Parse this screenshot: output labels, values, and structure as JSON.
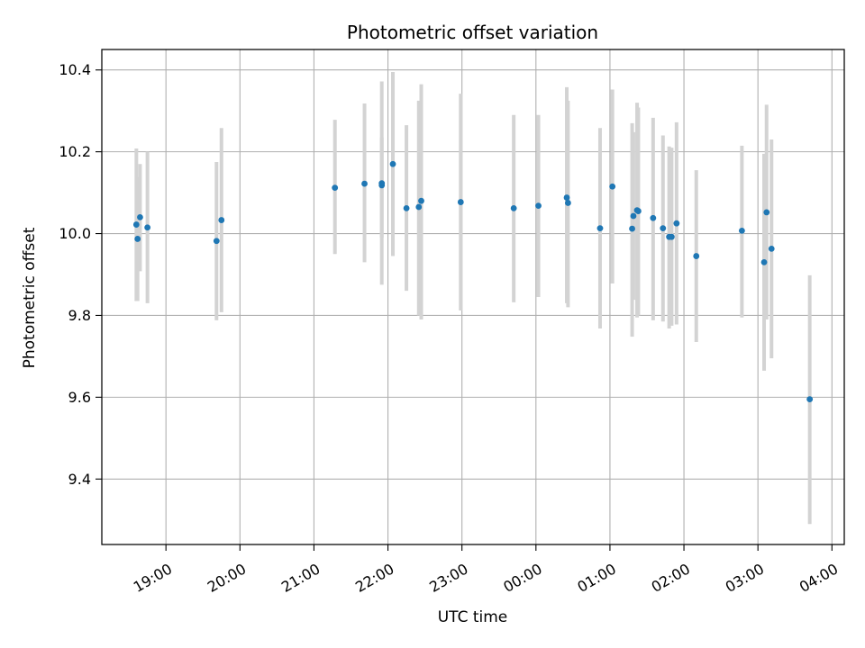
{
  "chart_data": {
    "type": "scatter",
    "title": "Photometric offset variation",
    "xlabel": "UTC time",
    "ylabel": "Photometric offset",
    "x_unit": "UTC time (hours, post-midnight values shown past 24)",
    "xlim": [
      "18:08",
      "04:10"
    ],
    "ylim": [
      9.24,
      10.45
    ],
    "x_ticks": [
      "19:00",
      "20:00",
      "21:00",
      "22:00",
      "23:00",
      "00:00",
      "01:00",
      "02:00",
      "03:00",
      "04:00"
    ],
    "y_ticks": [
      "9.4",
      "9.6",
      "9.8",
      "10.0",
      "10.2",
      "10.4"
    ],
    "grid": true,
    "marker_color": "#1f77b4",
    "errorbar_color": "#d3d3d3",
    "points": [
      {
        "x": "18:36",
        "y": 10.022,
        "lo": 9.835,
        "hi": 10.208
      },
      {
        "x": "18:37",
        "y": 9.987,
        "lo": 9.835,
        "hi": 10.138
      },
      {
        "x": "18:39",
        "y": 10.04,
        "lo": 9.908,
        "hi": 10.17
      },
      {
        "x": "18:45",
        "y": 10.015,
        "lo": 9.83,
        "hi": 10.2
      },
      {
        "x": "19:41",
        "y": 9.982,
        "lo": 9.788,
        "hi": 10.175
      },
      {
        "x": "19:45",
        "y": 10.033,
        "lo": 9.808,
        "hi": 10.258
      },
      {
        "x": "21:17",
        "y": 10.112,
        "lo": 9.95,
        "hi": 10.278
      },
      {
        "x": "21:41",
        "y": 10.122,
        "lo": 9.93,
        "hi": 10.318
      },
      {
        "x": "21:55",
        "y": 10.118,
        "lo": 9.875,
        "hi": 10.372
      },
      {
        "x": "21:55",
        "y": 10.123,
        "lo": 9.99,
        "hi": 10.235
      },
      {
        "x": "22:04",
        "y": 10.17,
        "lo": 9.945,
        "hi": 10.395
      },
      {
        "x": "22:15",
        "y": 10.062,
        "lo": 9.86,
        "hi": 10.265
      },
      {
        "x": "22:25",
        "y": 10.065,
        "lo": 9.8,
        "hi": 10.325
      },
      {
        "x": "22:27",
        "y": 10.08,
        "lo": 9.79,
        "hi": 10.365
      },
      {
        "x": "22:59",
        "y": 10.077,
        "lo": 9.812,
        "hi": 10.342
      },
      {
        "x": "23:42",
        "y": 10.062,
        "lo": 9.832,
        "hi": 10.29
      },
      {
        "x": "00:02",
        "y": 10.068,
        "lo": 9.845,
        "hi": 10.29
      },
      {
        "x": "00:25",
        "y": 10.088,
        "lo": 9.83,
        "hi": 10.358
      },
      {
        "x": "00:26",
        "y": 10.075,
        "lo": 9.82,
        "hi": 10.325
      },
      {
        "x": "00:52",
        "y": 10.013,
        "lo": 9.768,
        "hi": 10.258
      },
      {
        "x": "01:02",
        "y": 10.115,
        "lo": 9.878,
        "hi": 10.352
      },
      {
        "x": "01:18",
        "y": 10.012,
        "lo": 9.748,
        "hi": 10.27
      },
      {
        "x": "01:19",
        "y": 10.043,
        "lo": 9.838,
        "hi": 10.248
      },
      {
        "x": "01:22",
        "y": 10.057,
        "lo": 9.795,
        "hi": 10.32
      },
      {
        "x": "01:23",
        "y": 10.055,
        "lo": 9.8,
        "hi": 10.308
      },
      {
        "x": "01:35",
        "y": 10.038,
        "lo": 9.788,
        "hi": 10.283
      },
      {
        "x": "01:43",
        "y": 10.013,
        "lo": 9.785,
        "hi": 10.24
      },
      {
        "x": "01:48",
        "y": 9.992,
        "lo": 9.768,
        "hi": 10.213
      },
      {
        "x": "01:50",
        "y": 9.992,
        "lo": 9.775,
        "hi": 10.21
      },
      {
        "x": "01:54",
        "y": 10.025,
        "lo": 9.778,
        "hi": 10.272
      },
      {
        "x": "02:10",
        "y": 9.945,
        "lo": 9.735,
        "hi": 10.155
      },
      {
        "x": "02:47",
        "y": 10.007,
        "lo": 9.795,
        "hi": 10.215
      },
      {
        "x": "03:05",
        "y": 9.93,
        "lo": 9.665,
        "hi": 10.195
      },
      {
        "x": "03:07",
        "y": 10.052,
        "lo": 9.79,
        "hi": 10.315
      },
      {
        "x": "03:11",
        "y": 9.963,
        "lo": 9.695,
        "hi": 10.23
      },
      {
        "x": "03:42",
        "y": 9.595,
        "lo": 9.29,
        "hi": 9.898
      }
    ]
  }
}
